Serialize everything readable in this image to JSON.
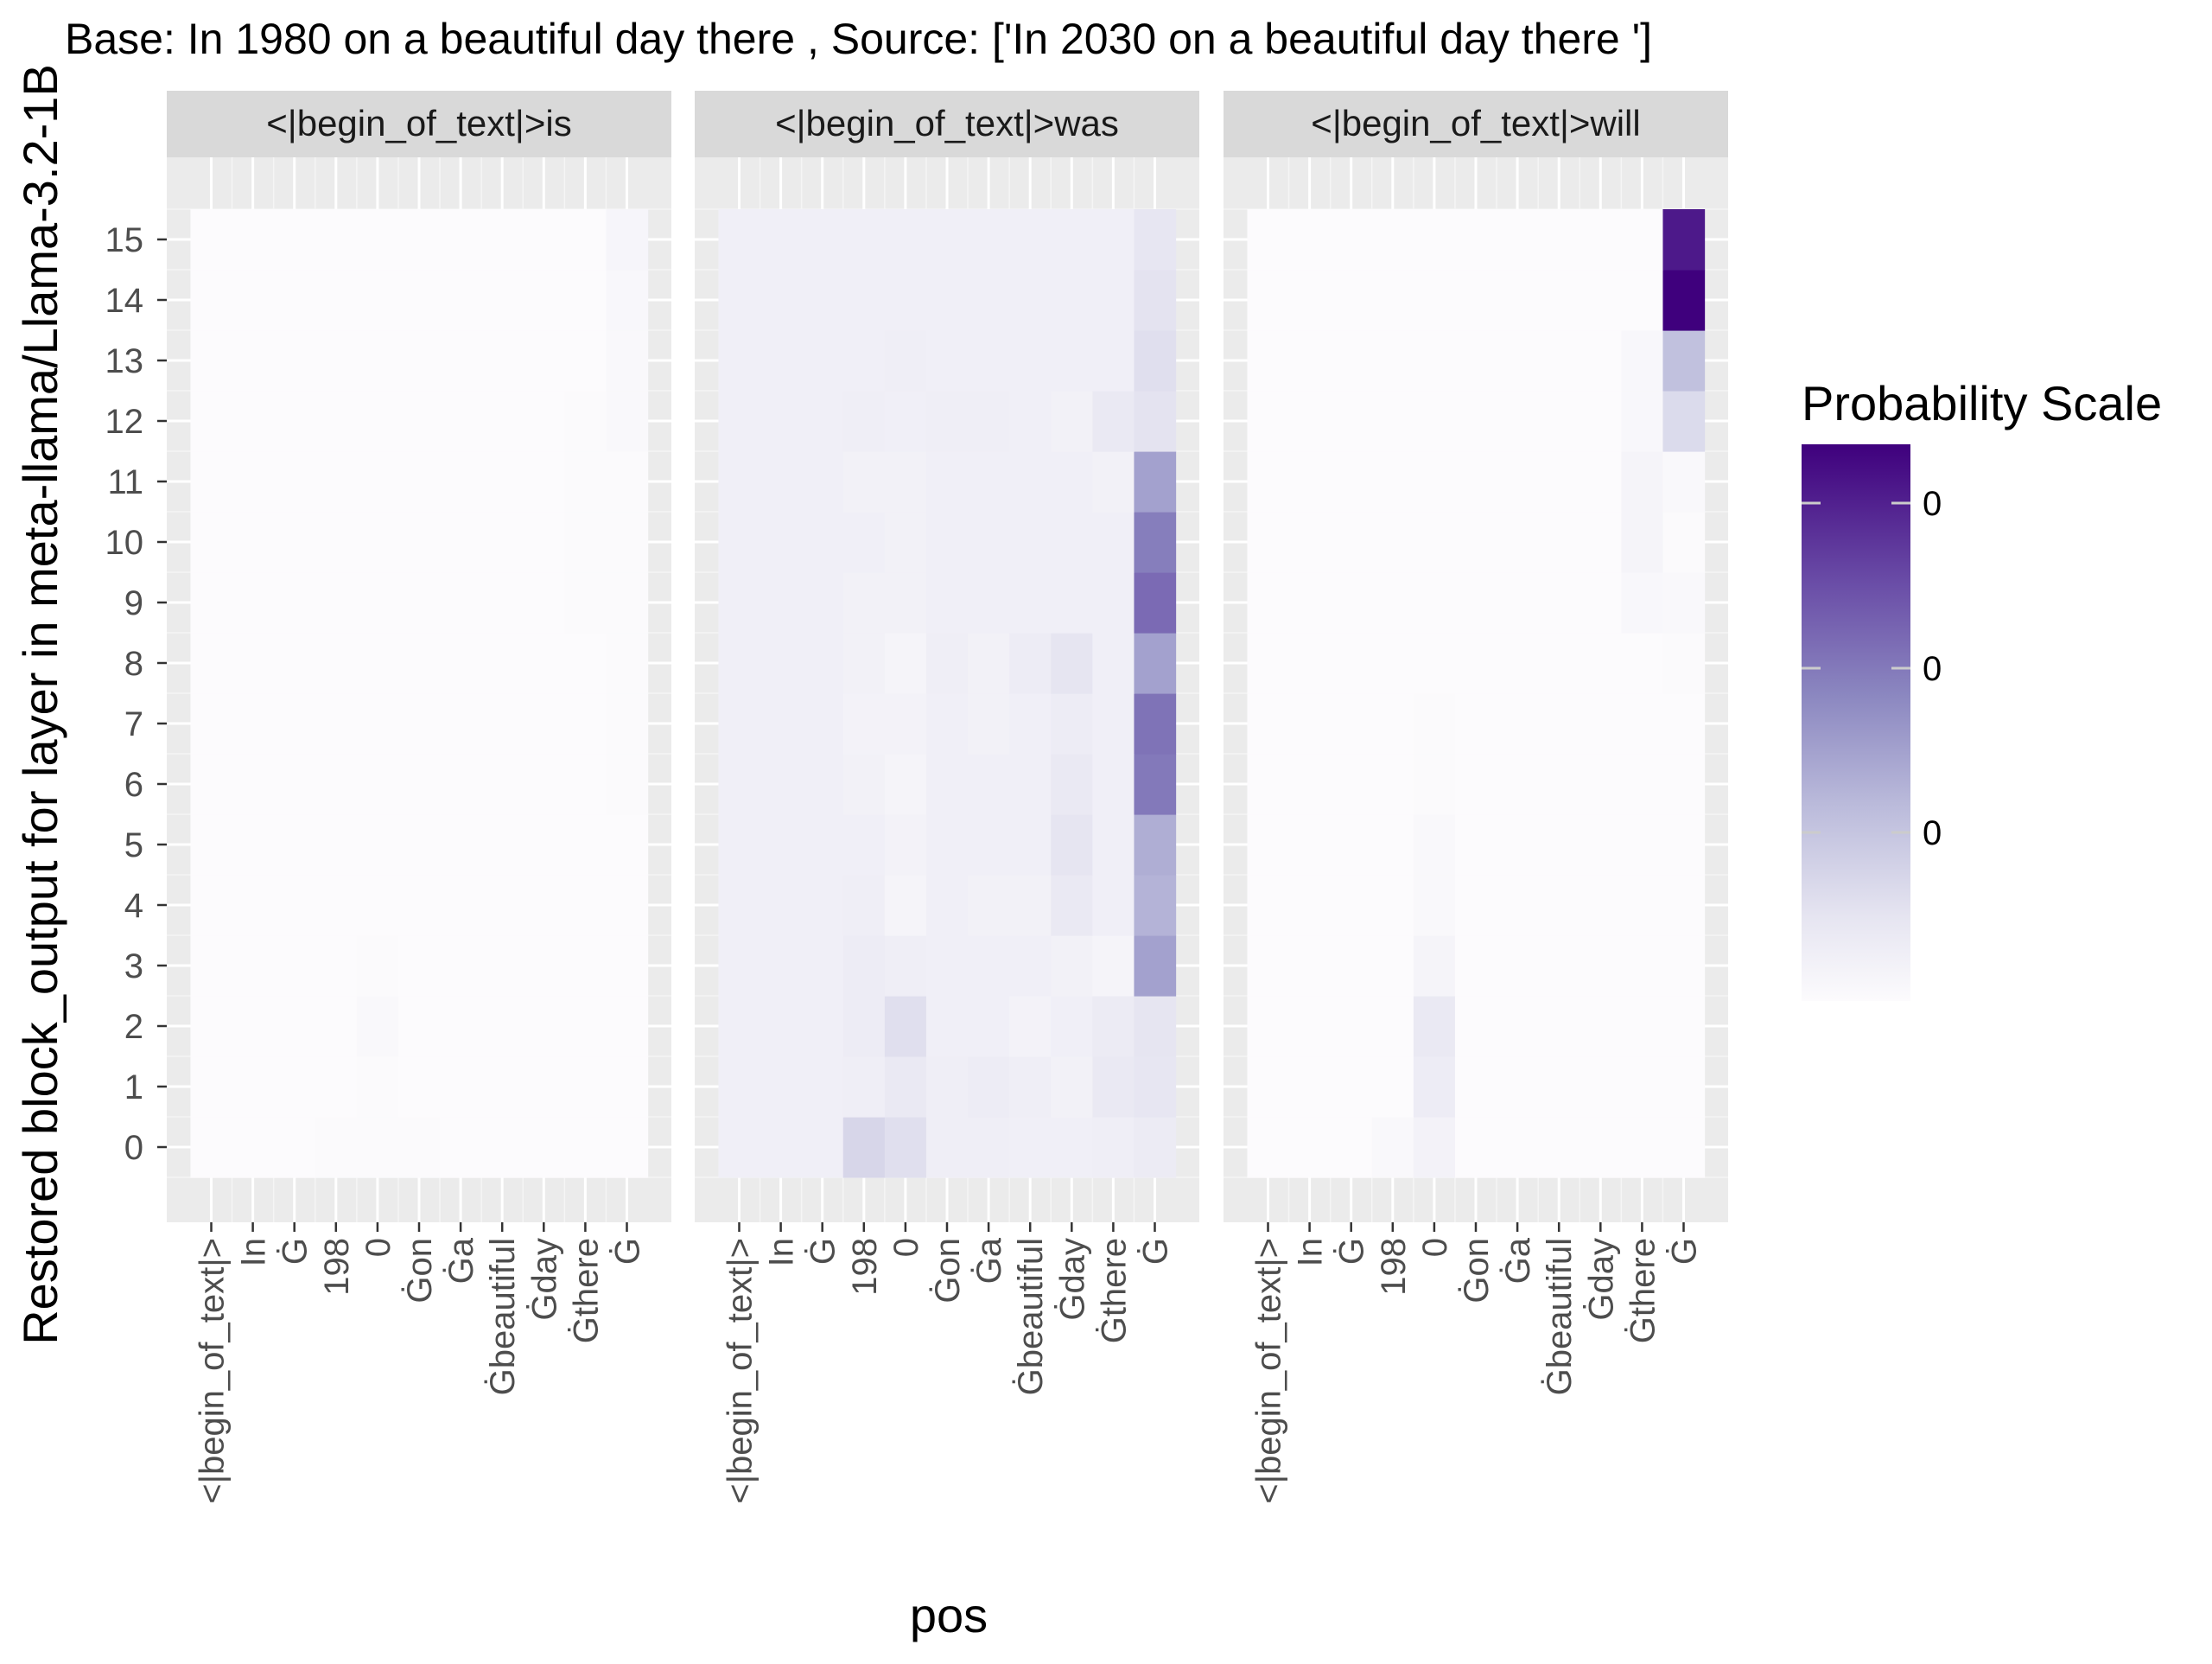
{
  "chart_data": {
    "type": "heatmap",
    "title": "Base: In 1980 on a beautiful day there , Source: ['In 2030 on a beautiful day there ']",
    "xlabel": "pos",
    "ylabel": "Restored block_output for layer in meta-llama/Llama-3.2-1B",
    "x_categories": [
      "<|begin_of_text|>",
      "In",
      "Ġ",
      "198",
      "0",
      "Ġon",
      "Ġa",
      "Ġbeautiful",
      "Ġday",
      "Ġthere",
      "Ġ"
    ],
    "y_categories": [
      "0",
      "1",
      "2",
      "3",
      "4",
      "5",
      "6",
      "7",
      "8",
      "9",
      "10",
      "11",
      "12",
      "13",
      "14",
      "15"
    ],
    "legend": {
      "title": "Probability Scale",
      "labels": [
        "0",
        "0",
        "0"
      ],
      "placement": "right",
      "color_low": "#fcfbfd",
      "color_high": "#3f007d"
    },
    "value_range": [
      0,
      1
    ],
    "panels": [
      {
        "label": "<|begin_of_text|>is",
        "z": [
          [
            0.0,
            0.0,
            0.0,
            0.01,
            0.01,
            0.01,
            0.0,
            0.0,
            0.0,
            0.0,
            0.0
          ],
          [
            0.0,
            0.0,
            0.0,
            0.0,
            0.01,
            0.0,
            0.0,
            0.0,
            0.0,
            0.0,
            0.0
          ],
          [
            0.0,
            0.0,
            0.0,
            0.0,
            0.02,
            0.0,
            0.0,
            0.0,
            0.0,
            0.0,
            0.0
          ],
          [
            0.0,
            0.0,
            0.0,
            0.0,
            0.01,
            0.0,
            0.0,
            0.0,
            0.0,
            0.0,
            0.0
          ],
          [
            0.0,
            0.0,
            0.0,
            0.0,
            0.0,
            0.0,
            0.0,
            0.0,
            0.0,
            0.0,
            0.0
          ],
          [
            0.0,
            0.0,
            0.0,
            0.0,
            0.0,
            0.0,
            0.0,
            0.0,
            0.0,
            0.0,
            0.0
          ],
          [
            0.0,
            0.0,
            0.0,
            0.0,
            0.0,
            0.0,
            0.0,
            0.0,
            0.0,
            0.0,
            0.01
          ],
          [
            0.0,
            0.0,
            0.0,
            0.0,
            0.0,
            0.0,
            0.0,
            0.0,
            0.0,
            0.0,
            0.01
          ],
          [
            0.0,
            0.0,
            0.0,
            0.0,
            0.0,
            0.0,
            0.0,
            0.0,
            0.0,
            0.0,
            0.01
          ],
          [
            0.0,
            0.0,
            0.0,
            0.0,
            0.0,
            0.0,
            0.0,
            0.0,
            0.0,
            0.01,
            0.01
          ],
          [
            0.0,
            0.0,
            0.0,
            0.0,
            0.0,
            0.0,
            0.0,
            0.0,
            0.0,
            0.01,
            0.01
          ],
          [
            0.0,
            0.0,
            0.0,
            0.0,
            0.0,
            0.0,
            0.0,
            0.0,
            0.0,
            0.01,
            0.01
          ],
          [
            0.0,
            0.0,
            0.0,
            0.0,
            0.0,
            0.0,
            0.0,
            0.0,
            0.0,
            0.01,
            0.02
          ],
          [
            0.0,
            0.0,
            0.0,
            0.0,
            0.0,
            0.0,
            0.0,
            0.0,
            0.0,
            0.0,
            0.02
          ],
          [
            0.0,
            0.0,
            0.0,
            0.0,
            0.0,
            0.0,
            0.0,
            0.0,
            0.0,
            0.0,
            0.03
          ],
          [
            0.0,
            0.0,
            0.0,
            0.0,
            0.0,
            0.0,
            0.0,
            0.0,
            0.0,
            0.0,
            0.04
          ]
        ]
      },
      {
        "label": "<|begin_of_text|>was",
        "z": [
          [
            0.08,
            0.08,
            0.08,
            0.22,
            0.18,
            0.09,
            0.09,
            0.08,
            0.08,
            0.09,
            0.11
          ],
          [
            0.08,
            0.08,
            0.08,
            0.09,
            0.12,
            0.09,
            0.1,
            0.09,
            0.07,
            0.12,
            0.14
          ],
          [
            0.08,
            0.08,
            0.08,
            0.1,
            0.18,
            0.08,
            0.08,
            0.06,
            0.08,
            0.11,
            0.15
          ],
          [
            0.08,
            0.08,
            0.08,
            0.1,
            0.09,
            0.08,
            0.08,
            0.08,
            0.07,
            0.05,
            0.45
          ],
          [
            0.08,
            0.08,
            0.08,
            0.09,
            0.05,
            0.08,
            0.07,
            0.07,
            0.12,
            0.08,
            0.38
          ],
          [
            0.08,
            0.08,
            0.08,
            0.08,
            0.06,
            0.08,
            0.08,
            0.08,
            0.15,
            0.08,
            0.4
          ],
          [
            0.08,
            0.08,
            0.08,
            0.07,
            0.05,
            0.08,
            0.08,
            0.08,
            0.12,
            0.08,
            0.6
          ],
          [
            0.08,
            0.08,
            0.08,
            0.06,
            0.06,
            0.08,
            0.07,
            0.08,
            0.1,
            0.08,
            0.62
          ],
          [
            0.08,
            0.08,
            0.08,
            0.07,
            0.05,
            0.09,
            0.07,
            0.1,
            0.15,
            0.08,
            0.45
          ],
          [
            0.08,
            0.08,
            0.08,
            0.07,
            0.07,
            0.08,
            0.08,
            0.08,
            0.08,
            0.08,
            0.65
          ],
          [
            0.08,
            0.08,
            0.08,
            0.08,
            0.07,
            0.08,
            0.08,
            0.08,
            0.08,
            0.08,
            0.58
          ],
          [
            0.08,
            0.08,
            0.08,
            0.07,
            0.07,
            0.08,
            0.08,
            0.08,
            0.08,
            0.07,
            0.45
          ],
          [
            0.08,
            0.08,
            0.08,
            0.09,
            0.08,
            0.09,
            0.09,
            0.08,
            0.07,
            0.12,
            0.16
          ],
          [
            0.08,
            0.08,
            0.08,
            0.08,
            0.09,
            0.08,
            0.08,
            0.08,
            0.08,
            0.08,
            0.18
          ],
          [
            0.08,
            0.08,
            0.08,
            0.08,
            0.08,
            0.08,
            0.08,
            0.08,
            0.08,
            0.08,
            0.16
          ],
          [
            0.08,
            0.08,
            0.08,
            0.08,
            0.08,
            0.08,
            0.08,
            0.08,
            0.08,
            0.08,
            0.14
          ]
        ]
      },
      {
        "label": "<|begin_of_text|>will",
        "z": [
          [
            0.0,
            0.0,
            0.0,
            0.02,
            0.06,
            0.0,
            0.0,
            0.0,
            0.0,
            0.0,
            0.0
          ],
          [
            0.0,
            0.0,
            0.0,
            0.0,
            0.1,
            0.0,
            0.0,
            0.0,
            0.0,
            0.0,
            0.0
          ],
          [
            0.0,
            0.0,
            0.0,
            0.0,
            0.12,
            0.0,
            0.0,
            0.0,
            0.0,
            0.0,
            0.0
          ],
          [
            0.0,
            0.0,
            0.0,
            0.0,
            0.05,
            0.0,
            0.0,
            0.0,
            0.0,
            0.0,
            0.0
          ],
          [
            0.0,
            0.0,
            0.0,
            0.0,
            0.02,
            0.0,
            0.0,
            0.0,
            0.0,
            0.0,
            0.0
          ],
          [
            0.0,
            0.0,
            0.0,
            0.0,
            0.02,
            0.0,
            0.0,
            0.0,
            0.0,
            0.0,
            0.0
          ],
          [
            0.0,
            0.0,
            0.0,
            0.0,
            0.01,
            0.0,
            0.0,
            0.0,
            0.0,
            0.0,
            0.0
          ],
          [
            0.0,
            0.0,
            0.0,
            0.0,
            0.01,
            0.0,
            0.0,
            0.0,
            0.0,
            0.0,
            0.0
          ],
          [
            0.0,
            0.0,
            0.0,
            0.0,
            0.0,
            0.0,
            0.0,
            0.0,
            0.0,
            0.0,
            0.01
          ],
          [
            0.0,
            0.0,
            0.0,
            0.0,
            0.0,
            0.0,
            0.0,
            0.0,
            0.0,
            0.03,
            0.02
          ],
          [
            0.0,
            0.0,
            0.0,
            0.0,
            0.0,
            0.0,
            0.0,
            0.0,
            0.0,
            0.05,
            0.01
          ],
          [
            0.0,
            0.0,
            0.0,
            0.0,
            0.0,
            0.0,
            0.0,
            0.0,
            0.0,
            0.05,
            0.02
          ],
          [
            0.0,
            0.0,
            0.0,
            0.0,
            0.0,
            0.0,
            0.0,
            0.0,
            0.0,
            0.03,
            0.2
          ],
          [
            0.0,
            0.0,
            0.0,
            0.0,
            0.0,
            0.0,
            0.0,
            0.0,
            0.0,
            0.03,
            0.32
          ],
          [
            0.0,
            0.0,
            0.0,
            0.0,
            0.0,
            0.0,
            0.0,
            0.0,
            0.0,
            0.0,
            1.0
          ],
          [
            0.0,
            0.0,
            0.0,
            0.0,
            0.0,
            0.0,
            0.0,
            0.0,
            0.0,
            0.0,
            0.92
          ]
        ]
      }
    ]
  }
}
